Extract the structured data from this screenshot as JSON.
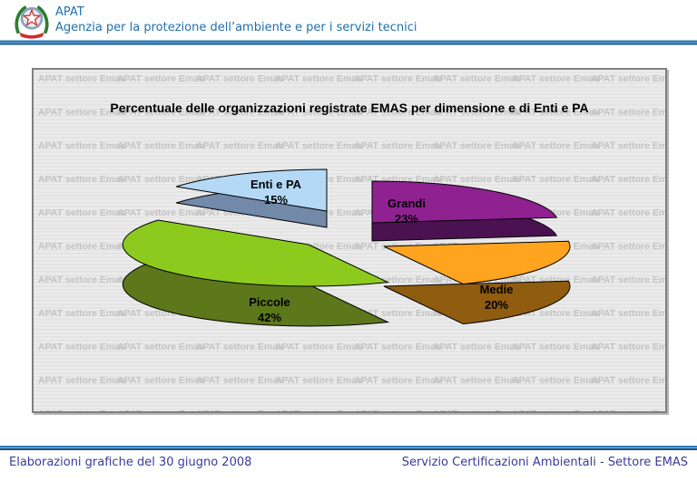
{
  "header": {
    "org": "APAT",
    "subtitle": "Agenzia per la protezione dell’ambiente e per i servizi tecnici"
  },
  "watermark": {
    "text": "APAT settore Emas"
  },
  "chart_data": {
    "type": "pie",
    "style": "3d-exploded",
    "title": "Percentuale delle organizzazioni registrate EMAS per dimensione e di Enti e PA",
    "unit": "%",
    "start_angle_deg": -90,
    "direction": "clockwise",
    "labels_on_slices": true,
    "legend": "none",
    "slices": [
      {
        "label": "Grandi",
        "value": 23,
        "top_color": "#8F2191",
        "side_color": "#4B1251"
      },
      {
        "label": "Medie",
        "value": 20,
        "top_color": "#FFA41E",
        "side_color": "#8F5C10"
      },
      {
        "label": "Piccole",
        "value": 42,
        "top_color": "#8CCB1E",
        "side_color": "#5D771B"
      },
      {
        "label": "Enti e PA",
        "value": 15,
        "top_color": "#B3D9F7",
        "side_color": "#7289A9"
      }
    ]
  },
  "footer": {
    "left": "Elaborazioni grafiche del 30 giugno 2008",
    "right": "Servizio Certificazioni Ambientali - Settore EMAS"
  }
}
